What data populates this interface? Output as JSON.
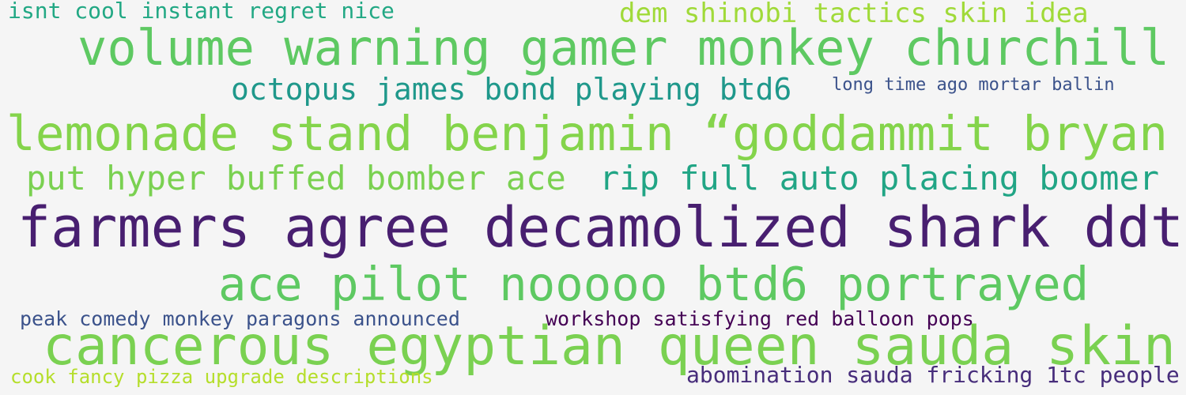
{
  "word_cloud": {
    "background_color": "#f5f5f5",
    "words": [
      {
        "text": "isnt cool instant regret nice",
        "color": "#22a884"
      },
      {
        "text": "dem shinobi tactics skin idea",
        "color": "#a0da39"
      },
      {
        "text": "volume warning gamer monkey churchill",
        "color": "#5ec962"
      },
      {
        "text": "octopus james bond playing btd6",
        "color": "#1f988b"
      },
      {
        "text": "long time ago mortar ballin",
        "color": "#3b528b"
      },
      {
        "text": "lemonade stand benjamin “goddammit bryan",
        "color": "#84d44b"
      },
      {
        "text": "put hyper buffed bomber ace",
        "color": "#7ad151"
      },
      {
        "text": "rip full auto placing boomer",
        "color": "#21a585"
      },
      {
        "text": "farmers agree decamolized shark ddt",
        "color": "#481f70"
      },
      {
        "text": "ace pilot nooooo btd6 portrayed",
        "color": "#5ec962"
      },
      {
        "text": "peak comedy monkey paragons announced",
        "color": "#3b528b"
      },
      {
        "text": "workshop satisfying red balloon pops",
        "color": "#440154"
      },
      {
        "text": "cancerous egyptian queen sauda skin",
        "color": "#7ad151"
      },
      {
        "text": "cook fancy pizza upgrade descriptions",
        "color": "#b5de2b"
      },
      {
        "text": "abomination sauda fricking 1tc people",
        "color": "#472d7b"
      }
    ]
  }
}
